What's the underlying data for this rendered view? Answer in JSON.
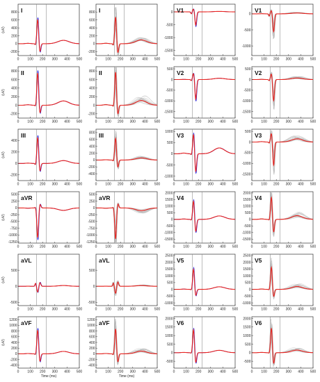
{
  "colors": {
    "mean_red": "#e8211d",
    "other_blue": "#1f1fe0",
    "individual_gray": "#b8b8b8",
    "frame": "#333333",
    "marker_line": "#7a7a7a"
  },
  "shared": {
    "x_label": "Time (ms)",
    "y_label": "(uV)",
    "x_ticks": [
      0,
      100,
      200,
      300,
      400,
      500
    ],
    "xlim": [
      0,
      500
    ],
    "vertical_markers_ms": [
      150,
      230
    ]
  },
  "chart_data": [
    {
      "id": "I-a",
      "type": "line",
      "lead": "I",
      "col": 0,
      "row": 0,
      "style": "mean",
      "ylim": [
        -300,
        1000
      ],
      "yticks": [
        -200,
        0,
        200,
        400,
        600,
        800
      ],
      "amp": {
        "r": 620,
        "q": -40,
        "s": -210,
        "t": 85
      }
    },
    {
      "id": "I-b",
      "type": "line",
      "lead": "I",
      "col": 1,
      "row": 0,
      "style": "overlay",
      "ylim": [
        -300,
        1000
      ],
      "yticks": [
        -200,
        0,
        200,
        400,
        600,
        800
      ],
      "amp": {
        "r": 680,
        "q": -50,
        "s": -240,
        "t": 95
      }
    },
    {
      "id": "V1-a",
      "type": "line",
      "lead": "V1",
      "col": 2,
      "row": 0,
      "style": "mean",
      "ylim": [
        -1700,
        300
      ],
      "yticks": [
        -1500,
        -1000,
        -500,
        0
      ],
      "amp": {
        "r": 120,
        "q": -80,
        "s": -520,
        "t": 20
      }
    },
    {
      "id": "V1-b",
      "type": "line",
      "lead": "V1",
      "col": 3,
      "row": 0,
      "style": "overlay",
      "ylim": [
        -1300,
        300
      ],
      "yticks": [
        -1000,
        -500,
        0
      ],
      "amp": {
        "r": 110,
        "q": -70,
        "s": -560,
        "t": 25
      }
    },
    {
      "id": "II-a",
      "type": "line",
      "lead": "II",
      "col": 0,
      "row": 1,
      "style": "mean",
      "ylim": [
        -300,
        900
      ],
      "yticks": [
        -200,
        0,
        200,
        400,
        600,
        800
      ],
      "amp": {
        "r": 760,
        "q": -30,
        "s": -190,
        "t": 100
      }
    },
    {
      "id": "II-b",
      "type": "line",
      "lead": "II",
      "col": 1,
      "row": 1,
      "style": "overlay",
      "ylim": [
        -300,
        900
      ],
      "yticks": [
        -200,
        0,
        200,
        400,
        600,
        800
      ],
      "amp": {
        "r": 780,
        "q": -40,
        "s": -220,
        "t": 110
      }
    },
    {
      "id": "V2-a",
      "type": "line",
      "lead": "V2",
      "col": 2,
      "row": 1,
      "style": "mean",
      "ylim": [
        -1800,
        600
      ],
      "yticks": [
        -1500,
        -1000,
        -500,
        0,
        500
      ],
      "amp": {
        "r": 300,
        "q": -60,
        "s": -930,
        "t": 60
      }
    },
    {
      "id": "V2-b",
      "type": "line",
      "lead": "V2",
      "col": 3,
      "row": 1,
      "style": "overlay",
      "ylim": [
        -1800,
        600
      ],
      "yticks": [
        -1500,
        -1000,
        -500,
        0,
        500
      ],
      "amp": {
        "r": 280,
        "q": -60,
        "s": -1000,
        "t": 70
      }
    },
    {
      "id": "III-a",
      "type": "line",
      "lead": "III",
      "col": 0,
      "row": 2,
      "style": "mean",
      "ylim": [
        -300,
        600
      ],
      "yticks": [
        -200,
        0,
        200,
        400
      ],
      "amp": {
        "r": 460,
        "q": -30,
        "s": -140,
        "t": 50
      }
    },
    {
      "id": "III-b",
      "type": "line",
      "lead": "III",
      "col": 1,
      "row": 2,
      "style": "overlay",
      "ylim": [
        -600,
        900
      ],
      "yticks": [
        -400,
        -200,
        0,
        200,
        400,
        600,
        800
      ],
      "amp": {
        "r": 640,
        "q": -40,
        "s": -220,
        "t": 60
      }
    },
    {
      "id": "V3-a",
      "type": "line",
      "lead": "V3",
      "col": 2,
      "row": 2,
      "style": "mean",
      "ylim": [
        -1200,
        1100
      ],
      "yticks": [
        -1000,
        -500,
        0,
        500,
        1000
      ],
      "amp": {
        "r": 880,
        "q": -60,
        "s": -820,
        "t": 260
      }
    },
    {
      "id": "V3-b",
      "type": "line",
      "lead": "V3",
      "col": 3,
      "row": 2,
      "style": "overlay",
      "ylim": [
        -1800,
        600
      ],
      "yticks": [
        -1500,
        -1000,
        -500,
        0,
        500
      ],
      "amp": {
        "r": 420,
        "q": -60,
        "s": -1100,
        "t": 150
      }
    },
    {
      "id": "aVR-a",
      "type": "line",
      "lead": "aVR",
      "col": 0,
      "row": 3,
      "style": "mean",
      "ylim": [
        -1300,
        600
      ],
      "yticks": [
        -1250,
        -1000,
        -750,
        -500,
        -250,
        0,
        250,
        500
      ],
      "amp": {
        "r": -1100,
        "q": 40,
        "s": 150,
        "t": -90
      }
    },
    {
      "id": "aVR-b",
      "type": "line",
      "lead": "aVR",
      "col": 1,
      "row": 3,
      "style": "overlay",
      "ylim": [
        -1300,
        600
      ],
      "yticks": [
        -1250,
        -1000,
        -750,
        -500,
        -250,
        0,
        250,
        500
      ],
      "amp": {
        "r": -1150,
        "q": 40,
        "s": 170,
        "t": -100
      }
    },
    {
      "id": "V4-a",
      "type": "line",
      "lead": "V4",
      "col": 2,
      "row": 3,
      "style": "mean",
      "ylim": [
        -1800,
        2100
      ],
      "yticks": [
        -1500,
        -1000,
        -500,
        0,
        500,
        1000,
        1500,
        2000
      ],
      "amp": {
        "r": 1400,
        "q": -80,
        "s": -950,
        "t": 260
      }
    },
    {
      "id": "V4-b",
      "type": "line",
      "lead": "V4",
      "col": 3,
      "row": 3,
      "style": "overlay",
      "ylim": [
        -1800,
        2100
      ],
      "yticks": [
        -1500,
        -1000,
        -500,
        0,
        500,
        1000,
        1500,
        2000
      ],
      "amp": {
        "r": 1700,
        "q": -80,
        "s": -1000,
        "t": 280
      }
    },
    {
      "id": "aVL-a",
      "type": "line",
      "lead": "aVL",
      "col": 0,
      "row": 4,
      "style": "mean",
      "ylim": [
        -600,
        1000
      ],
      "yticks": [
        -500,
        0,
        500
      ],
      "amp": {
        "r": -180,
        "q": 100,
        "s": 120,
        "t": 25
      }
    },
    {
      "id": "aVL-b",
      "type": "line",
      "lead": "aVL",
      "col": 1,
      "row": 4,
      "style": "overlay",
      "ylim": [
        -600,
        1000
      ],
      "yticks": [
        -500,
        0,
        500
      ],
      "amp": {
        "r": -220,
        "q": 110,
        "s": 140,
        "t": 25
      }
    },
    {
      "id": "V5-a",
      "type": "line",
      "lead": "V5",
      "col": 2,
      "row": 4,
      "style": "mean",
      "ylim": [
        -1200,
        2600
      ],
      "yticks": [
        -1000,
        -500,
        0,
        500,
        1000,
        1500,
        2000,
        2500
      ],
      "amp": {
        "r": 1500,
        "q": -60,
        "s": -480,
        "t": 190
      }
    },
    {
      "id": "V5-b",
      "type": "line",
      "lead": "V5",
      "col": 3,
      "row": 4,
      "style": "overlay",
      "ylim": [
        -1200,
        2600
      ],
      "yticks": [
        -1000,
        -500,
        0,
        500,
        1000,
        1500,
        2000,
        2500
      ],
      "amp": {
        "r": 1650,
        "q": -60,
        "s": -560,
        "t": 210
      }
    },
    {
      "id": "aVF-a",
      "type": "line",
      "lead": "aVF",
      "col": 0,
      "row": 5,
      "style": "mean",
      "ylim": [
        -500,
        1300
      ],
      "yticks": [
        -400,
        -200,
        0,
        200,
        400,
        600,
        800,
        1000,
        1200
      ],
      "amp": {
        "r": 840,
        "q": -40,
        "s": -280,
        "t": 85
      }
    },
    {
      "id": "aVF-b",
      "type": "line",
      "lead": "aVF",
      "col": 1,
      "row": 5,
      "style": "overlay",
      "ylim": [
        -500,
        1300
      ],
      "yticks": [
        -400,
        -200,
        0,
        200,
        400,
        600,
        800,
        1000,
        1200
      ],
      "amp": {
        "r": 880,
        "q": -50,
        "s": -300,
        "t": 95
      }
    },
    {
      "id": "V6-a",
      "type": "line",
      "lead": "V6",
      "col": 2,
      "row": 5,
      "style": "mean",
      "ylim": [
        -900,
        2100
      ],
      "yticks": [
        -500,
        0,
        500,
        1000,
        1500,
        2000
      ],
      "amp": {
        "r": 1350,
        "q": -50,
        "s": -600,
        "t": 140
      }
    },
    {
      "id": "V6-b",
      "type": "line",
      "lead": "V6",
      "col": 3,
      "row": 5,
      "style": "overlay",
      "ylim": [
        -900,
        2100
      ],
      "yticks": [
        -500,
        0,
        500,
        1000,
        1500,
        2000
      ],
      "amp": {
        "r": 1450,
        "q": -50,
        "s": -660,
        "t": 150
      }
    }
  ]
}
